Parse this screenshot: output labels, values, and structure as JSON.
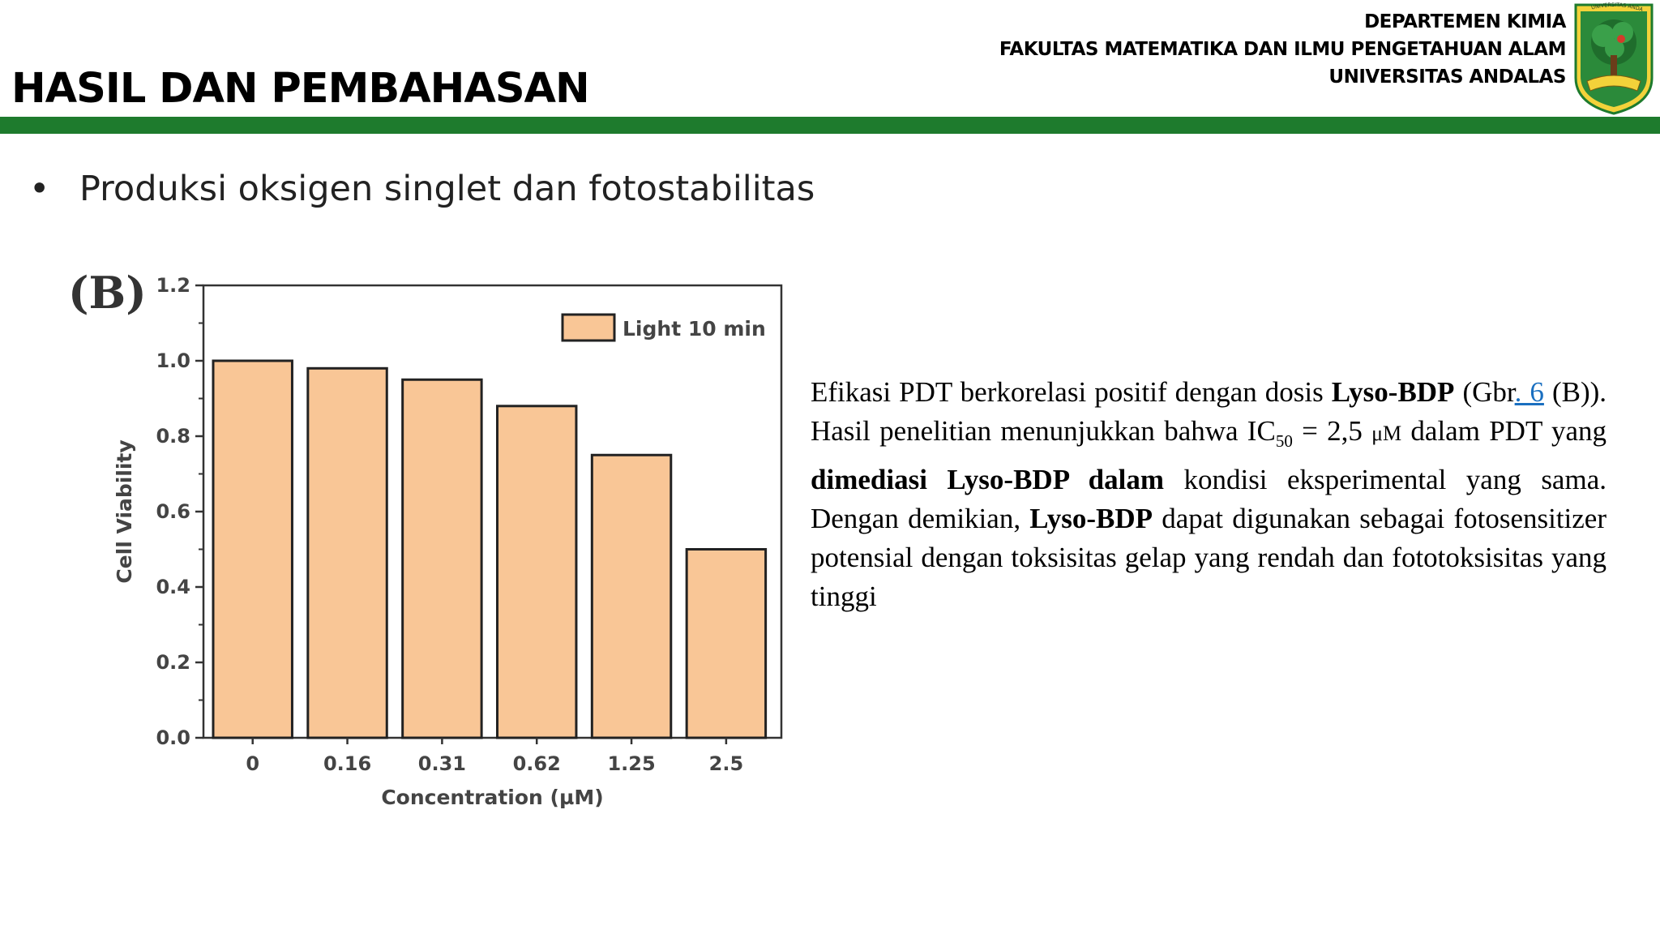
{
  "header": {
    "title": "HASIL DAN PEMBAHASAN",
    "institution_lines": [
      "DEPARTEMEN KIMIA",
      "FAKULTAS MATEMATIKA DAN ILMU PENGETAHUAN ALAM",
      "UNIVERSITAS ANDALAS"
    ],
    "logo_text": "UNIVERSITAS ANDALAS",
    "bar_color": "#1e7b2d"
  },
  "bullet": {
    "text": "Produksi oksigen singlet dan fotostabilitas"
  },
  "chart_data": {
    "type": "bar",
    "panel_label": "(B)",
    "categories": [
      "0",
      "0.16",
      "0.31",
      "0.62",
      "1.25",
      "2.5"
    ],
    "series": [
      {
        "name": "Light 10 min",
        "values": [
          1.0,
          0.98,
          0.95,
          0.88,
          0.75,
          0.5
        ],
        "color": "#f9c696"
      }
    ],
    "xlabel": "Concentration (µM)",
    "ylabel": "Cell Viability",
    "ylim": [
      0,
      1.2
    ],
    "yticks": [
      "0.0",
      "0.2",
      "0.4",
      "0.6",
      "0.8",
      "1.0",
      "1.2"
    ],
    "legend_position": "top-right",
    "grid": false
  },
  "paragraph": {
    "p1": "Efikasi PDT berkorelasi positif dengan dosis ",
    "b1": "Lyso-BDP",
    "p2": " (Gbr",
    "link": ". 6",
    "p3": " (B)). Hasil penelitian menunjukkan bahwa IC",
    "sub": "50",
    "p4": " = 2,5 ",
    "mu": "μM",
    "p5": " dalam PDT yang ",
    "b2": "dimediasi Lyso-BDP dalam",
    "p6": " kondisi eksperimental yang sama. Dengan demikian, ",
    "b3": "Lyso-BDP",
    "p7": " dapat digunakan sebagai fotosensitizer potensial dengan toksisitas gelap yang rendah dan fototoksisitas yang tinggi"
  }
}
